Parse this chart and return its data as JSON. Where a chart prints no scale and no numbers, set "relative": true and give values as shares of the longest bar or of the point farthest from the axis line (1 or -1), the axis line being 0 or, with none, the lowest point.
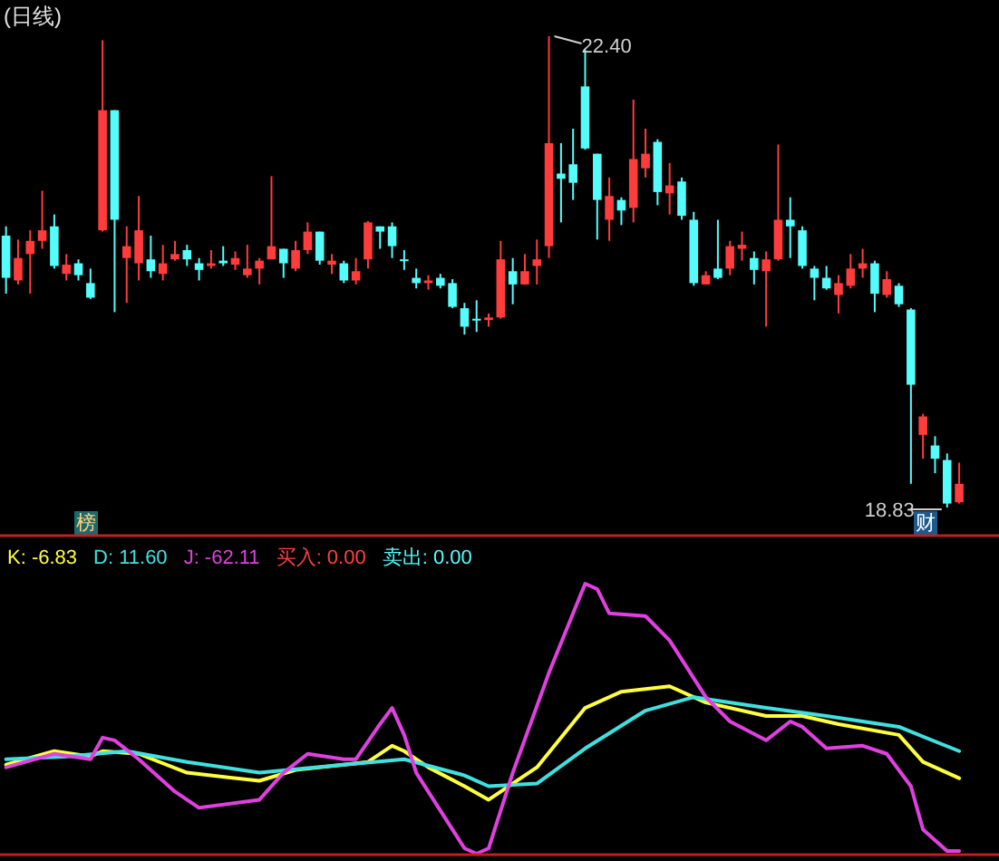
{
  "chart_data": [
    {
      "type": "candlestick",
      "title": "(日线)",
      "categories": [
        null,
        null,
        null,
        null,
        null,
        null,
        null,
        null,
        null,
        null,
        null,
        null,
        null,
        null,
        null,
        null,
        null,
        null,
        null,
        null,
        null,
        null,
        null,
        null,
        null,
        null,
        null,
        null,
        null,
        null,
        null,
        null,
        null,
        null,
        null,
        null,
        null,
        null,
        null,
        null,
        null,
        null,
        null,
        null,
        null,
        null,
        null,
        null,
        null,
        null,
        null,
        null,
        null,
        null,
        null,
        null,
        null,
        null,
        null,
        null,
        null,
        null,
        null,
        null,
        null,
        null,
        null,
        null,
        null,
        null,
        null,
        null,
        null,
        null,
        null,
        null,
        null,
        null,
        null,
        null
      ],
      "ohlc": [
        [
          20.89,
          20.96,
          20.45,
          20.57
        ],
        [
          20.55,
          20.86,
          20.52,
          20.72
        ],
        [
          20.75,
          20.93,
          20.45,
          20.85
        ],
        [
          20.85,
          21.23,
          20.79,
          20.93
        ],
        [
          20.96,
          21.05,
          20.64,
          20.66
        ],
        [
          20.6,
          20.75,
          20.55,
          20.67
        ],
        [
          20.68,
          20.71,
          20.55,
          20.59
        ],
        [
          20.53,
          20.64,
          20.41,
          20.42
        ],
        [
          20.93,
          22.37,
          20.92,
          21.84
        ],
        [
          21.84,
          21.84,
          20.31,
          21.01
        ],
        [
          20.72,
          20.96,
          20.38,
          20.81
        ],
        [
          20.68,
          21.19,
          20.55,
          20.93
        ],
        [
          20.71,
          20.89,
          20.57,
          20.62
        ],
        [
          20.6,
          20.82,
          20.55,
          20.68
        ],
        [
          20.71,
          20.85,
          20.7,
          20.75
        ],
        [
          20.78,
          20.82,
          20.66,
          20.71
        ],
        [
          20.68,
          20.72,
          20.55,
          20.63
        ],
        [
          20.66,
          20.78,
          20.64,
          20.68
        ],
        [
          20.7,
          20.81,
          20.66,
          20.68
        ],
        [
          20.67,
          20.77,
          20.63,
          20.72
        ],
        [
          20.59,
          20.82,
          20.57,
          20.64
        ],
        [
          20.64,
          20.72,
          20.52,
          20.7
        ],
        [
          20.71,
          21.34,
          20.71,
          20.81
        ],
        [
          20.79,
          20.79,
          20.57,
          20.68
        ],
        [
          20.64,
          20.85,
          20.62,
          20.78
        ],
        [
          20.78,
          20.99,
          20.75,
          20.92
        ],
        [
          20.92,
          20.92,
          20.67,
          20.7
        ],
        [
          20.67,
          20.75,
          20.6,
          20.7
        ],
        [
          20.68,
          20.7,
          20.53,
          20.55
        ],
        [
          20.55,
          20.72,
          20.52,
          20.62
        ],
        [
          20.71,
          21.0,
          20.64,
          20.99
        ],
        [
          20.96,
          20.96,
          20.79,
          20.92
        ],
        [
          20.96,
          20.99,
          20.72,
          20.81
        ],
        [
          20.71,
          20.78,
          20.63,
          20.7
        ],
        [
          20.57,
          20.64,
          20.49,
          20.53
        ],
        [
          20.53,
          20.59,
          20.48,
          20.55
        ],
        [
          20.57,
          20.6,
          20.49,
          20.51
        ],
        [
          20.53,
          20.56,
          20.34,
          20.35
        ],
        [
          20.34,
          20.38,
          20.14,
          20.2
        ],
        [
          20.26,
          20.4,
          20.16,
          20.25
        ],
        [
          20.25,
          20.3,
          20.2,
          20.27
        ],
        [
          20.27,
          20.85,
          20.26,
          20.71
        ],
        [
          20.62,
          20.72,
          20.37,
          20.52
        ],
        [
          20.52,
          20.75,
          20.52,
          20.62
        ],
        [
          20.66,
          20.86,
          20.52,
          20.71
        ],
        [
          20.81,
          22.4,
          20.72,
          21.59
        ],
        [
          21.36,
          21.59,
          20.99,
          21.32
        ],
        [
          21.43,
          21.7,
          21.16,
          21.29
        ],
        [
          22.02,
          22.3,
          21.54,
          21.55
        ],
        [
          21.51,
          21.51,
          20.86,
          21.16
        ],
        [
          21.01,
          21.33,
          20.85,
          21.19
        ],
        [
          21.16,
          21.18,
          20.97,
          21.08
        ],
        [
          21.1,
          21.92,
          20.99,
          21.47
        ],
        [
          21.4,
          21.7,
          21.33,
          21.51
        ],
        [
          21.6,
          21.62,
          21.12,
          21.22
        ],
        [
          21.21,
          21.44,
          21.05,
          21.27
        ],
        [
          21.3,
          21.33,
          21.01,
          21.04
        ],
        [
          21.01,
          21.07,
          20.51,
          20.53
        ],
        [
          20.52,
          20.62,
          20.52,
          20.59
        ],
        [
          20.64,
          21.01,
          20.56,
          20.57
        ],
        [
          20.64,
          20.85,
          20.59,
          20.81
        ],
        [
          20.79,
          20.92,
          20.7,
          20.82
        ],
        [
          20.72,
          20.77,
          20.52,
          20.63
        ],
        [
          20.62,
          20.77,
          20.2,
          20.71
        ],
        [
          20.71,
          21.58,
          20.7,
          21.01
        ],
        [
          21.01,
          21.18,
          20.72,
          20.96
        ],
        [
          20.93,
          20.96,
          20.64,
          20.66
        ],
        [
          20.64,
          20.66,
          20.4,
          20.57
        ],
        [
          20.57,
          20.66,
          20.48,
          20.49
        ],
        [
          20.44,
          20.59,
          20.3,
          20.53
        ],
        [
          20.51,
          20.75,
          20.49,
          20.64
        ],
        [
          20.64,
          20.79,
          20.57,
          20.68
        ],
        [
          20.68,
          20.7,
          20.31,
          20.45
        ],
        [
          20.44,
          20.62,
          20.42,
          20.56
        ],
        [
          20.51,
          20.53,
          20.35,
          20.37
        ],
        [
          20.33,
          20.34,
          19.01,
          19.76
        ],
        [
          19.38,
          19.54,
          19.2,
          19.52
        ],
        [
          19.3,
          19.37,
          19.09,
          19.2
        ],
        [
          19.19,
          19.24,
          18.83,
          18.86
        ],
        [
          18.87,
          19.17,
          18.86,
          19.01
        ]
      ],
      "annotations": [
        "22.40",
        "18.83",
        "财",
        "榜"
      ]
    },
    {
      "type": "line",
      "relative": true,
      "categories": [
        null,
        null,
        null,
        null,
        null,
        null,
        null,
        null,
        null,
        null,
        null,
        null,
        null,
        null,
        null,
        null,
        null,
        null,
        null,
        null,
        null,
        null,
        null,
        null,
        null,
        null,
        null,
        null,
        null,
        null,
        null,
        null,
        null,
        null,
        null,
        null,
        null,
        null,
        null,
        null,
        null,
        null,
        null,
        null,
        null,
        null,
        null,
        null,
        null,
        null,
        null,
        null,
        null,
        null,
        null,
        null,
        null,
        null,
        null,
        null,
        null,
        null,
        null,
        null,
        null,
        null,
        null,
        null,
        null,
        null,
        null,
        null,
        null,
        null,
        null,
        null,
        null,
        null,
        null,
        null
      ],
      "series": [
        {
          "name": "K: -6.83",
          "color": "#ffff40",
          "values": [
            0.33,
            null,
            null,
            null,
            0.38,
            null,
            null,
            0.36,
            0.38,
            null,
            null,
            0.37,
            null,
            null,
            null,
            0.3,
            null,
            null,
            null,
            null,
            null,
            0.27,
            null,
            null,
            0.31,
            null,
            null,
            null,
            0.33,
            null,
            0.34,
            null,
            0.4,
            0.38,
            null,
            0.32,
            null,
            null,
            0.25,
            null,
            0.2,
            null,
            null,
            null,
            0.32,
            null,
            null,
            null,
            0.54,
            null,
            null,
            0.6,
            null,
            null,
            null,
            0.62,
            null,
            null,
            0.56,
            null,
            null,
            null,
            null,
            0.51,
            null,
            null,
            0.51,
            null,
            null,
            0.48,
            null,
            null,
            null,
            null,
            0.44,
            null,
            0.34,
            null,
            null,
            0.28
          ]
        },
        {
          "name": "D: 11.60",
          "color": "#40e0e0",
          "values": [
            0.35,
            null,
            null,
            null,
            null,
            0.36,
            null,
            null,
            null,
            null,
            0.38,
            null,
            null,
            null,
            null,
            0.34,
            null,
            null,
            null,
            null,
            null,
            0.3,
            null,
            null,
            null,
            null,
            null,
            null,
            0.33,
            null,
            null,
            null,
            null,
            0.35,
            null,
            null,
            null,
            null,
            0.29,
            null,
            0.25,
            null,
            null,
            null,
            0.26,
            null,
            null,
            null,
            0.39,
            null,
            null,
            null,
            null,
            0.53,
            null,
            null,
            null,
            0.58,
            null,
            null,
            null,
            null,
            null,
            0.54,
            null,
            null,
            null,
            null,
            0.51,
            null,
            null,
            null,
            null,
            null,
            0.47,
            null,
            null,
            null,
            null,
            0.38
          ]
        },
        {
          "name": "J: -62.11",
          "color": "#e040e0",
          "values": [
            0.32,
            null,
            null,
            null,
            0.37,
            null,
            null,
            0.35,
            0.43,
            0.42,
            null,
            0.35,
            null,
            null,
            0.23,
            null,
            0.17,
            null,
            null,
            null,
            null,
            0.2,
            null,
            0.3,
            null,
            0.37,
            null,
            null,
            0.35,
            0.35,
            null,
            0.48,
            0.54,
            0.44,
            0.3,
            null,
            0.16,
            null,
            0.02,
            0,
            0.02,
            null,
            0.3,
            null,
            null,
            0.67,
            null,
            null,
            1.0,
            0.98,
            0.89,
            null,
            null,
            0.88,
            null,
            0.79,
            null,
            null,
            0.58,
            null,
            0.49,
            null,
            null,
            0.42,
            null,
            0.49,
            0.47,
            null,
            0.39,
            null,
            null,
            0.4,
            null,
            0.37,
            null,
            0.25,
            0.09,
            null,
            0.01,
            0.01
          ]
        }
      ],
      "annotations": [
        "买入: 0.00",
        "卖出: 0.00"
      ]
    }
  ]
}
